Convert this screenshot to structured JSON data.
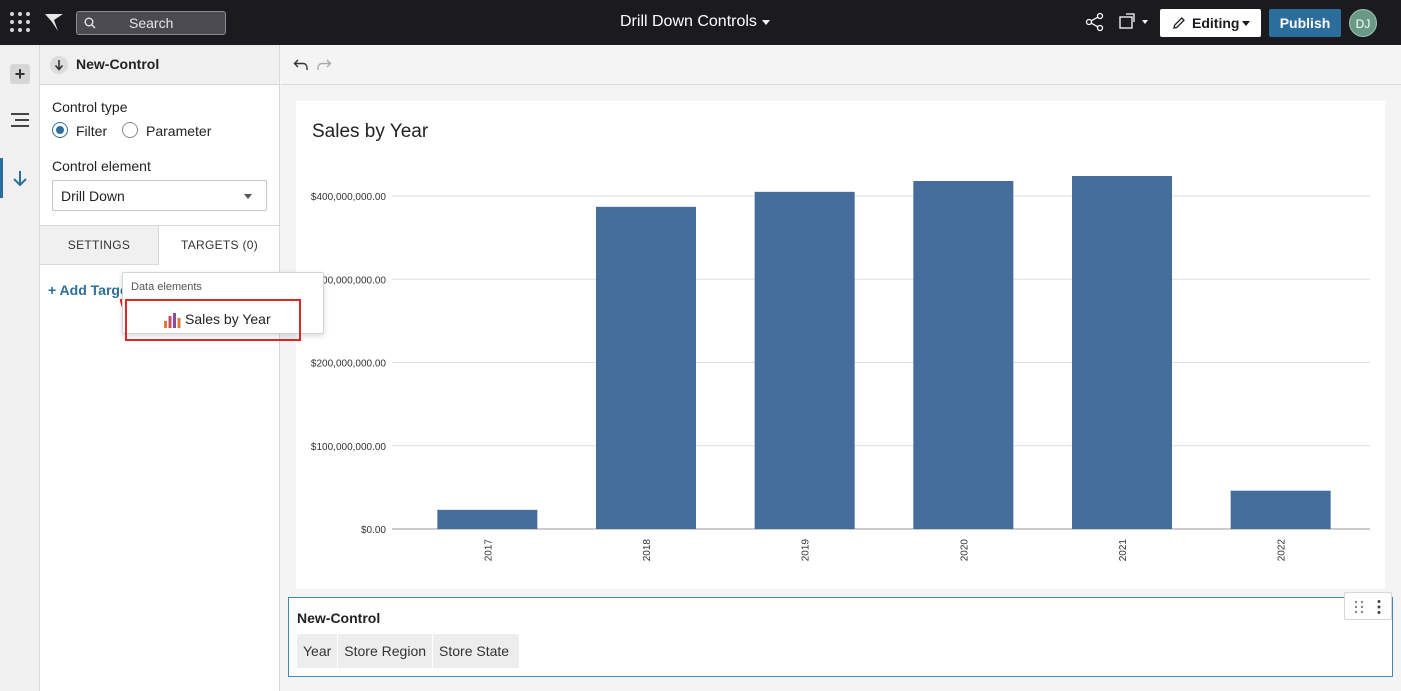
{
  "topbar": {
    "search_placeholder": "Search",
    "doc_title": "Drill Down Controls",
    "editing_label": "Editing",
    "publish_label": "Publish",
    "avatar_initials": "DJ"
  },
  "panel": {
    "title": "New-Control",
    "control_type_label": "Control type",
    "control_type_options": [
      "Filter",
      "Parameter"
    ],
    "control_type_selected": "Filter",
    "control_element_label": "Control element",
    "control_element_value": "Drill Down",
    "tabs": [
      "SETTINGS",
      "TARGETS (0)"
    ],
    "add_target_label": "+ Add Target"
  },
  "popup": {
    "header": "Data elements",
    "item_label": "Sales by Year"
  },
  "chart_data": {
    "type": "bar",
    "title": "Sales by Year",
    "categories": [
      "2017",
      "2018",
      "2019",
      "2020",
      "2021",
      "2022"
    ],
    "values": [
      23000000,
      387000000,
      405000000,
      418000000,
      424000000,
      46000000
    ],
    "y_ticks": [
      0,
      100000000,
      200000000,
      300000000,
      400000000
    ],
    "y_tick_labels": [
      "$0.00",
      "$100,000,000.00",
      "$200,000,000.00",
      "$300,000,000.00",
      "$400,000,000.00"
    ],
    "ylim": [
      0,
      400000000
    ],
    "grid": true,
    "bar_color": "#446d9c"
  },
  "control": {
    "title": "New-Control",
    "chips": [
      "Year",
      "Store Region",
      "Store State"
    ]
  },
  "colors": {
    "accent": "#2b6e9b",
    "highlight": "#e12424"
  }
}
